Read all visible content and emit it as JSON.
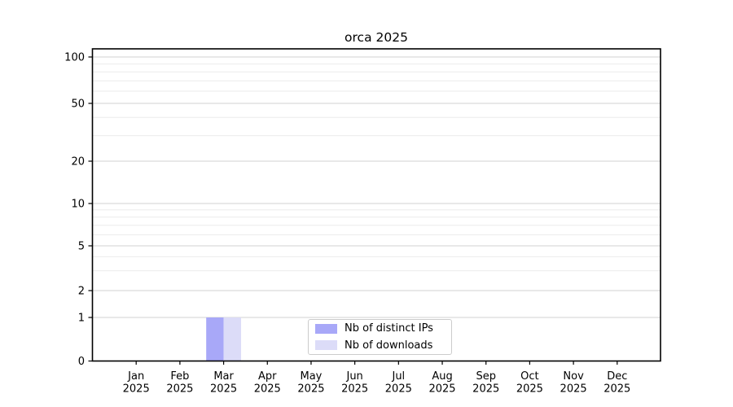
{
  "chart_data": {
    "type": "bar",
    "title": "orca 2025",
    "categories": [
      "Jan 2025",
      "Feb 2025",
      "Mar 2025",
      "Apr 2025",
      "May 2025",
      "Jun 2025",
      "Jul 2025",
      "Aug 2025",
      "Sep 2025",
      "Oct 2025",
      "Nov 2025",
      "Dec 2025"
    ],
    "series": [
      {
        "name": "Nb of distinct IPs",
        "color": "#a8a8f8",
        "values": [
          0,
          0,
          1,
          0,
          0,
          0,
          0,
          0,
          0,
          0,
          0,
          0
        ]
      },
      {
        "name": "Nb of downloads",
        "color": "#dcdcf8",
        "values": [
          0,
          0,
          1,
          0,
          0,
          0,
          0,
          0,
          0,
          0,
          0,
          0
        ]
      }
    ],
    "xlabel": "",
    "ylabel": "",
    "yscale": "symlog",
    "yticks": [
      0,
      1,
      2,
      5,
      10,
      20,
      50,
      100
    ],
    "y_minor_ticks": [
      3,
      4,
      6,
      7,
      8,
      9,
      30,
      40,
      60,
      70,
      80,
      90
    ],
    "ylim": [
      0,
      100
    ],
    "grid": true,
    "legend_position": "lower center"
  },
  "colors": {
    "axis": "#000000",
    "grid_major": "#d2d2d2",
    "grid_minor": "#ebebeb",
    "legend_border": "#cccccc",
    "background": "#ffffff",
    "text": "#000000"
  }
}
